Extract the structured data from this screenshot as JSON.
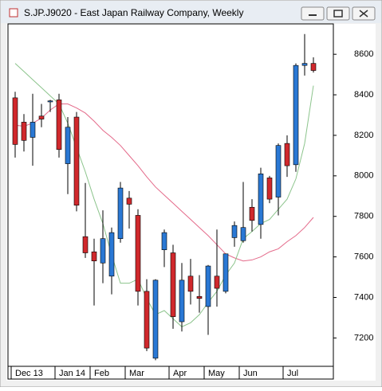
{
  "chart_data": {
    "type": "candlestick",
    "title": "S.JP.J9020 - East Japan Railway Company, Weekly",
    "categories": [
      "Dec 13",
      null,
      null,
      null,
      null,
      "Jan 14",
      null,
      null,
      null,
      "Feb",
      null,
      null,
      null,
      "Mar",
      null,
      null,
      null,
      null,
      "Apr",
      null,
      null,
      null,
      "May",
      null,
      null,
      null,
      "Jun",
      null,
      null,
      null,
      null,
      "Jul",
      null,
      null,
      null
    ],
    "open": [
      8385,
      8265,
      8190,
      8295,
      8365,
      8375,
      8060,
      8290,
      7700,
      7625,
      7570,
      7505,
      7690,
      7890,
      7805,
      7430,
      7100,
      7635,
      7620,
      7280,
      7505,
      7405,
      7355,
      7505,
      7430,
      7695,
      7680,
      7845,
      7760,
      7990,
      7895,
      8160,
      8055,
      8545,
      8555
    ],
    "high": [
      8415,
      8305,
      8405,
      8355,
      8375,
      8405,
      8290,
      8315,
      7965,
      7690,
      7830,
      7745,
      7970,
      7925,
      7835,
      7490,
      7490,
      7735,
      7660,
      7570,
      7590,
      7510,
      7560,
      7735,
      7615,
      7775,
      7970,
      7885,
      8040,
      8000,
      8160,
      8200,
      8555,
      8700,
      8585
    ],
    "low": [
      8090,
      8120,
      8050,
      8240,
      8315,
      8090,
      7910,
      7825,
      7595,
      7360,
      7470,
      7415,
      7670,
      7740,
      7360,
      7135,
      7090,
      7550,
      7245,
      7232,
      7365,
      7325,
      7215,
      7355,
      7420,
      7650,
      7670,
      7725,
      7690,
      7865,
      7805,
      7995,
      8020,
      8495,
      8510
    ],
    "close": [
      8155,
      8175,
      8265,
      8280,
      8370,
      8130,
      8240,
      7855,
      7620,
      7580,
      7690,
      7720,
      7940,
      7860,
      7430,
      7150,
      7485,
      7720,
      7305,
      7485,
      7430,
      7395,
      7555,
      7445,
      7615,
      7755,
      7745,
      7780,
      8010,
      7885,
      8150,
      8050,
      8545,
      8555,
      8520
    ],
    "up_color": "#2a78d4",
    "down_color": "#d0282c",
    "series": [
      {
        "color": "#e46a8a",
        "values": [
          8250,
          8245,
          8260,
          8285,
          8325,
          8355,
          8355,
          8335,
          8310,
          8270,
          8225,
          8190,
          8150,
          8100,
          8050,
          7995,
          7945,
          7905,
          7865,
          7825,
          7785,
          7745,
          7705,
          7660,
          7615,
          7595,
          7580,
          7585,
          7600,
          7625,
          7640,
          7675,
          7705,
          7745,
          7795
        ]
      },
      {
        "color": "#8cc48c",
        "values": [
          8555,
          8515,
          8475,
          8435,
          8395,
          8355,
          8260,
          8140,
          8020,
          7885,
          7765,
          7610,
          7470,
          7470,
          7490,
          7395,
          7315,
          7335,
          7295,
          7255,
          7275,
          7315,
          7375,
          7430,
          7510,
          7570,
          7690,
          7725,
          7765,
          7785,
          7835,
          7885,
          7985,
          8160,
          8445
        ]
      }
    ],
    "ylim": [
      7060,
      8750
    ],
    "yticks": [
      7200,
      7400,
      7600,
      7800,
      8000,
      8200,
      8400,
      8600
    ]
  }
}
